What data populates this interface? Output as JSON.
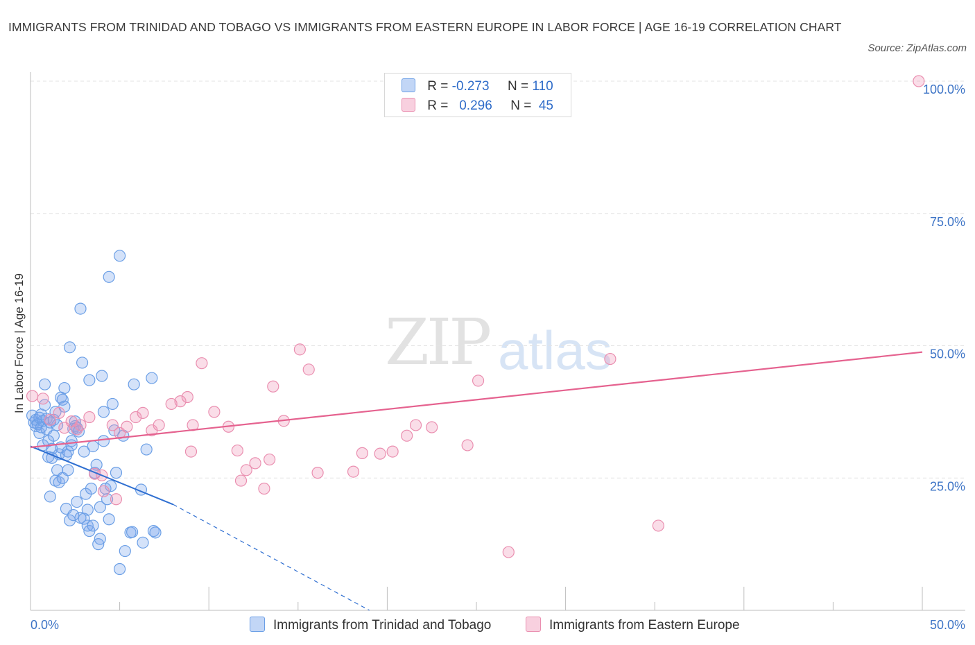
{
  "chart_data": {
    "type": "scatter",
    "title": "IMMIGRANTS FROM TRINIDAD AND TOBAGO VS IMMIGRANTS FROM EASTERN EUROPE IN LABOR FORCE | AGE 16-19 CORRELATION CHART",
    "source": "Source: ZipAtlas.com",
    "ylabel": "In Labor Force | Age 16-19",
    "xlabel": "",
    "xlim": [
      0,
      50
    ],
    "ylim": [
      0,
      100
    ],
    "x_tick_labels": {
      "left": "0.0%",
      "right": "50.0%"
    },
    "y_ticks": [
      {
        "value": 100,
        "label": "100.0%"
      },
      {
        "value": 75,
        "label": "75.0%"
      },
      {
        "value": 50,
        "label": "50.0%"
      },
      {
        "value": 25,
        "label": "25.0%"
      }
    ],
    "watermark": {
      "zip": "ZIP",
      "atlas": "atlas"
    },
    "legend": [
      {
        "r_label": "R =",
        "r_value": "-0.273",
        "n_label": "N =",
        "n_value": "110"
      },
      {
        "r_label": "R =",
        "r_value": "0.296",
        "n_label": "N =",
        "n_value": "45"
      }
    ],
    "series": [
      {
        "name": "Immigrants from Trinidad and Tobago",
        "color": "#6b9fe6",
        "fill": "rgba(120,165,235,0.32)",
        "line_color": "#2f6fd1",
        "trend": {
          "x0": 0.0,
          "y0": 31.0,
          "x1": 8.0,
          "y1": 20.0,
          "dash_x1": 19.0,
          "dash_y1": 0.0
        },
        "points": [
          [
            0.1,
            36.8
          ],
          [
            0.2,
            35.5
          ],
          [
            0.3,
            36.0
          ],
          [
            0.3,
            34.8
          ],
          [
            0.4,
            35.2
          ],
          [
            0.5,
            33.5
          ],
          [
            0.5,
            36.4
          ],
          [
            0.6,
            37.0
          ],
          [
            0.6,
            34.6
          ],
          [
            0.7,
            35.8
          ],
          [
            0.7,
            31.2
          ],
          [
            0.8,
            42.7
          ],
          [
            0.8,
            38.8
          ],
          [
            0.9,
            36.2
          ],
          [
            0.9,
            34.2
          ],
          [
            1.0,
            29.0
          ],
          [
            1.0,
            32.0
          ],
          [
            1.1,
            35.5
          ],
          [
            1.1,
            21.5
          ],
          [
            1.2,
            30.5
          ],
          [
            1.2,
            28.8
          ],
          [
            1.3,
            36.0
          ],
          [
            1.3,
            33.0
          ],
          [
            1.4,
            37.5
          ],
          [
            1.4,
            24.5
          ],
          [
            1.5,
            26.5
          ],
          [
            1.5,
            35.0
          ],
          [
            1.6,
            24.2
          ],
          [
            1.6,
            29.5
          ],
          [
            1.7,
            40.2
          ],
          [
            1.7,
            30.8
          ],
          [
            1.8,
            25.0
          ],
          [
            1.8,
            39.8
          ],
          [
            1.9,
            42.0
          ],
          [
            1.9,
            38.5
          ],
          [
            2.0,
            29.3
          ],
          [
            2.0,
            19.2
          ],
          [
            2.1,
            30.0
          ],
          [
            2.1,
            26.5
          ],
          [
            2.2,
            17.0
          ],
          [
            2.2,
            49.7
          ],
          [
            2.3,
            32.0
          ],
          [
            2.3,
            31.2
          ],
          [
            2.4,
            18.0
          ],
          [
            2.4,
            34.3
          ],
          [
            2.5,
            35.7
          ],
          [
            2.5,
            34.8
          ],
          [
            2.6,
            20.5
          ],
          [
            2.6,
            34.5
          ],
          [
            2.7,
            33.8
          ],
          [
            2.8,
            17.5
          ],
          [
            2.8,
            57.0
          ],
          [
            2.9,
            46.8
          ],
          [
            3.0,
            30.0
          ],
          [
            3.0,
            17.3
          ],
          [
            3.1,
            22.0
          ],
          [
            3.2,
            19.0
          ],
          [
            3.2,
            16.0
          ],
          [
            3.3,
            43.5
          ],
          [
            3.3,
            15.0
          ],
          [
            3.4,
            23.0
          ],
          [
            3.5,
            31.0
          ],
          [
            3.5,
            16.0
          ],
          [
            3.6,
            26.0
          ],
          [
            3.7,
            27.5
          ],
          [
            3.8,
            12.5
          ],
          [
            3.9,
            13.5
          ],
          [
            3.9,
            19.5
          ],
          [
            4.0,
            44.3
          ],
          [
            4.1,
            37.5
          ],
          [
            4.1,
            32.0
          ],
          [
            4.2,
            23.0
          ],
          [
            4.3,
            21.0
          ],
          [
            4.4,
            63.0
          ],
          [
            4.4,
            17.2
          ],
          [
            4.5,
            23.5
          ],
          [
            4.6,
            39.0
          ],
          [
            4.7,
            34.0
          ],
          [
            4.8,
            26.0
          ],
          [
            5.0,
            67.0
          ],
          [
            5.0,
            7.8
          ],
          [
            5.2,
            33.0
          ],
          [
            5.3,
            11.2
          ],
          [
            5.6,
            14.7
          ],
          [
            5.7,
            14.8
          ],
          [
            5.8,
            42.7
          ],
          [
            6.2,
            22.8
          ],
          [
            6.3,
            12.8
          ],
          [
            6.5,
            30.4
          ],
          [
            6.8,
            43.9
          ],
          [
            6.9,
            15.0
          ],
          [
            7.0,
            14.7
          ]
        ]
      },
      {
        "name": "Immigrants from Eastern Europe",
        "color": "#ea8fb0",
        "fill": "rgba(240,150,185,0.32)",
        "line_color": "#e5628f",
        "trend": {
          "x0": 0.0,
          "y0": 30.8,
          "x1": 50.0,
          "y1": 48.8
        },
        "points": [
          [
            0.1,
            40.5
          ],
          [
            0.7,
            40.0
          ],
          [
            1.1,
            36.0
          ],
          [
            1.6,
            37.3
          ],
          [
            1.9,
            34.5
          ],
          [
            2.3,
            35.7
          ],
          [
            2.6,
            34.2
          ],
          [
            2.8,
            35.0
          ],
          [
            3.3,
            36.5
          ],
          [
            3.6,
            25.8
          ],
          [
            4.0,
            25.5
          ],
          [
            4.1,
            22.5
          ],
          [
            4.6,
            35.0
          ],
          [
            5.0,
            33.5
          ],
          [
            5.4,
            34.7
          ],
          [
            4.8,
            21.0
          ],
          [
            5.9,
            36.5
          ],
          [
            6.3,
            37.3
          ],
          [
            6.8,
            34.0
          ],
          [
            7.2,
            35.0
          ],
          [
            7.9,
            39.0
          ],
          [
            8.4,
            39.5
          ],
          [
            8.8,
            40.3
          ],
          [
            9.1,
            35.0
          ],
          [
            9.6,
            46.7
          ],
          [
            9.0,
            30.0
          ],
          [
            10.3,
            37.5
          ],
          [
            11.1,
            34.7
          ],
          [
            11.6,
            30.2
          ],
          [
            11.8,
            24.5
          ],
          [
            12.1,
            26.5
          ],
          [
            12.6,
            27.8
          ],
          [
            13.1,
            23.0
          ],
          [
            13.4,
            28.5
          ],
          [
            13.6,
            42.3
          ],
          [
            14.2,
            35.8
          ],
          [
            15.1,
            49.3
          ],
          [
            15.6,
            45.5
          ],
          [
            16.1,
            26.0
          ],
          [
            18.1,
            26.2
          ],
          [
            18.6,
            29.7
          ],
          [
            19.6,
            29.6
          ],
          [
            20.3,
            30.0
          ],
          [
            21.1,
            33.0
          ],
          [
            21.6,
            35.0
          ],
          [
            22.5,
            34.6
          ],
          [
            24.5,
            31.2
          ],
          [
            25.1,
            43.4
          ],
          [
            26.8,
            11.0
          ],
          [
            32.5,
            47.5
          ],
          [
            35.2,
            16.0
          ],
          [
            49.8,
            100.0
          ]
        ]
      }
    ]
  }
}
